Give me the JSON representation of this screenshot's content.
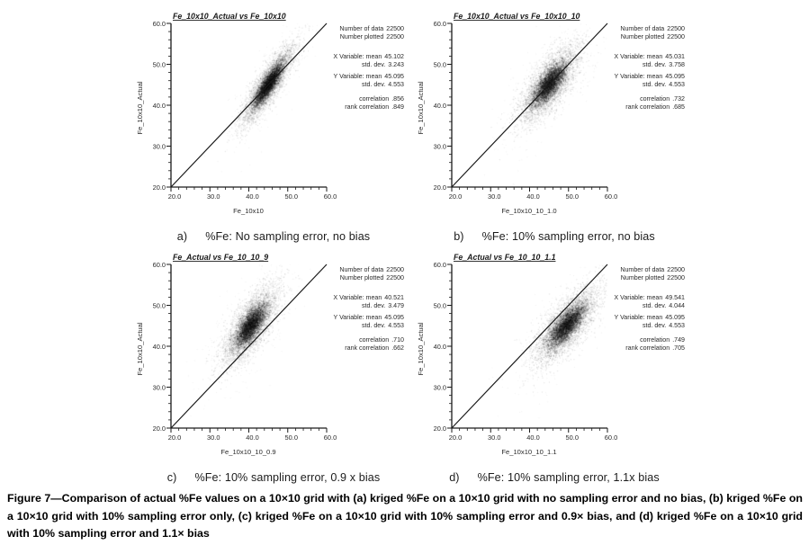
{
  "page": {
    "background": "#ffffff",
    "ink": "#1a1a1a",
    "point_color": "#000000"
  },
  "axis": {
    "tick_labels": [
      "20.0",
      "30.0",
      "40.0",
      "50.0",
      "60.0"
    ]
  },
  "panels": [
    {
      "letter": "a)",
      "caption": "%Fe: No sampling error, no bias",
      "title": "Fe_10x10_Actual vs Fe_10x10",
      "xlabel": "Fe_10x10",
      "ylabel": "Fe_10x10_Actual",
      "stats": [
        {
          "label": "Number of data",
          "value": "22500"
        },
        {
          "label": "Number plotted",
          "value": "22500"
        },
        {
          "label": "X Variable: mean",
          "value": "45.102"
        },
        {
          "label": "std. dev.",
          "value": "3.243"
        },
        {
          "label": "Y Variable: mean",
          "value": "45.095"
        },
        {
          "label": "std. dev.",
          "value": "4.553"
        },
        {
          "label": "correlation",
          "value": ".856"
        },
        {
          "label": "rank correlation",
          "value": ".849"
        }
      ]
    },
    {
      "letter": "b)",
      "caption": "%Fe: 10% sampling error, no bias",
      "title": "Fe_10x10_Actual vs Fe_10x10_10",
      "xlabel": "Fe_10x10_10_1.0",
      "ylabel": "Fe_10x10_Actual",
      "stats": [
        {
          "label": "Number of data",
          "value": "22500"
        },
        {
          "label": "Number plotted",
          "value": "22500"
        },
        {
          "label": "X Variable: mean",
          "value": "45.031"
        },
        {
          "label": "std. dev.",
          "value": "3.758"
        },
        {
          "label": "Y Variable: mean",
          "value": "45.095"
        },
        {
          "label": "std. dev.",
          "value": "4.553"
        },
        {
          "label": "correlation",
          "value": ".732"
        },
        {
          "label": "rank correlation",
          "value": ".685"
        }
      ]
    },
    {
      "letter": "c)",
      "caption": "%Fe: 10% sampling error, 0.9 x bias",
      "title": "Fe_Actual vs Fe_10_10_9",
      "xlabel": "Fe_10x10_10_0.9",
      "ylabel": "Fe_10x10_Actual",
      "stats": [
        {
          "label": "Number of data",
          "value": "22500"
        },
        {
          "label": "Number plotted",
          "value": "22500"
        },
        {
          "label": "X Variable: mean",
          "value": "40.521"
        },
        {
          "label": "std. dev.",
          "value": "3.479"
        },
        {
          "label": "Y Variable: mean",
          "value": "45.095"
        },
        {
          "label": "std. dev.",
          "value": "4.553"
        },
        {
          "label": "correlation",
          "value": ".710"
        },
        {
          "label": "rank correlation",
          "value": ".662"
        }
      ]
    },
    {
      "letter": "d)",
      "caption": "%Fe: 10% sampling error, 1.1x bias",
      "title": "Fe_Actual vs Fe_10_10_1.1",
      "xlabel": "Fe_10x10_10_1.1",
      "ylabel": "Fe_10x10_Actual",
      "stats": [
        {
          "label": "Number of data",
          "value": "22500"
        },
        {
          "label": "Number plotted",
          "value": "22500"
        },
        {
          "label": "X Variable: mean",
          "value": "49.541"
        },
        {
          "label": "std. dev.",
          "value": "4.044"
        },
        {
          "label": "Y Variable: mean",
          "value": "45.095"
        },
        {
          "label": "std. dev.",
          "value": "4.553"
        },
        {
          "label": "correlation",
          "value": ".749"
        },
        {
          "label": "rank correlation",
          "value": ".705"
        }
      ]
    }
  ],
  "figure_caption": "Figure 7—Comparison of actual %Fe values on a 10×10 grid with (a) kriged %Fe on a 10×10 grid with no sampling error and no bias, (b) kriged %Fe on a 10×10 grid with 10% sampling error only, (c) kriged %Fe on a 10×10 grid with 10% sampling error and 0.9× bias, and (d) kriged %Fe on a 10×10 grid with 10% sampling error and 1.1× bias",
  "chart_data": [
    {
      "type": "scatter",
      "title": "Fe_10x10_Actual vs Fe_10x10",
      "xlabel": "Fe_10x10",
      "ylabel": "Fe_10x10_Actual",
      "xlim": [
        20,
        60
      ],
      "ylim": [
        20,
        60
      ],
      "x_ticks": [
        20,
        30,
        40,
        50,
        60
      ],
      "y_ticks": [
        20,
        30,
        40,
        50,
        60
      ],
      "n_points": 22500,
      "x_mean": 45.102,
      "x_std": 3.243,
      "y_mean": 45.095,
      "y_std": 4.553,
      "correlation": 0.856,
      "rank_correlation": 0.849,
      "reference_line": {
        "from": [
          20,
          20
        ],
        "to": [
          60,
          60
        ]
      },
      "grid": false,
      "legend": false
    },
    {
      "type": "scatter",
      "title": "Fe_10x10_Actual vs Fe_10x10_10",
      "xlabel": "Fe_10x10_10_1.0",
      "ylabel": "Fe_10x10_Actual",
      "xlim": [
        20,
        60
      ],
      "ylim": [
        20,
        60
      ],
      "x_ticks": [
        20,
        30,
        40,
        50,
        60
      ],
      "y_ticks": [
        20,
        30,
        40,
        50,
        60
      ],
      "n_points": 22500,
      "x_mean": 45.031,
      "x_std": 3.758,
      "y_mean": 45.095,
      "y_std": 4.553,
      "correlation": 0.732,
      "rank_correlation": 0.685,
      "reference_line": {
        "from": [
          20,
          20
        ],
        "to": [
          60,
          60
        ]
      },
      "grid": false,
      "legend": false
    },
    {
      "type": "scatter",
      "title": "Fe_Actual vs Fe_10_10_9",
      "xlabel": "Fe_10x10_10_0.9",
      "ylabel": "Fe_10x10_Actual",
      "xlim": [
        20,
        60
      ],
      "ylim": [
        20,
        60
      ],
      "x_ticks": [
        20,
        30,
        40,
        50,
        60
      ],
      "y_ticks": [
        20,
        30,
        40,
        50,
        60
      ],
      "n_points": 22500,
      "x_mean": 40.521,
      "x_std": 3.479,
      "y_mean": 45.095,
      "y_std": 4.553,
      "correlation": 0.71,
      "rank_correlation": 0.662,
      "reference_line": {
        "from": [
          20,
          20
        ],
        "to": [
          60,
          60
        ]
      },
      "grid": false,
      "legend": false
    },
    {
      "type": "scatter",
      "title": "Fe_Actual vs Fe_10_10_1.1",
      "xlabel": "Fe_10x10_10_1.1",
      "ylabel": "Fe_10x10_Actual",
      "xlim": [
        20,
        60
      ],
      "ylim": [
        20,
        60
      ],
      "x_ticks": [
        20,
        30,
        40,
        50,
        60
      ],
      "y_ticks": [
        20,
        30,
        40,
        50,
        60
      ],
      "n_points": 22500,
      "x_mean": 49.541,
      "x_std": 4.044,
      "y_mean": 45.095,
      "y_std": 4.553,
      "correlation": 0.749,
      "rank_correlation": 0.705,
      "reference_line": {
        "from": [
          20,
          20
        ],
        "to": [
          60,
          60
        ]
      },
      "grid": false,
      "legend": false
    }
  ]
}
